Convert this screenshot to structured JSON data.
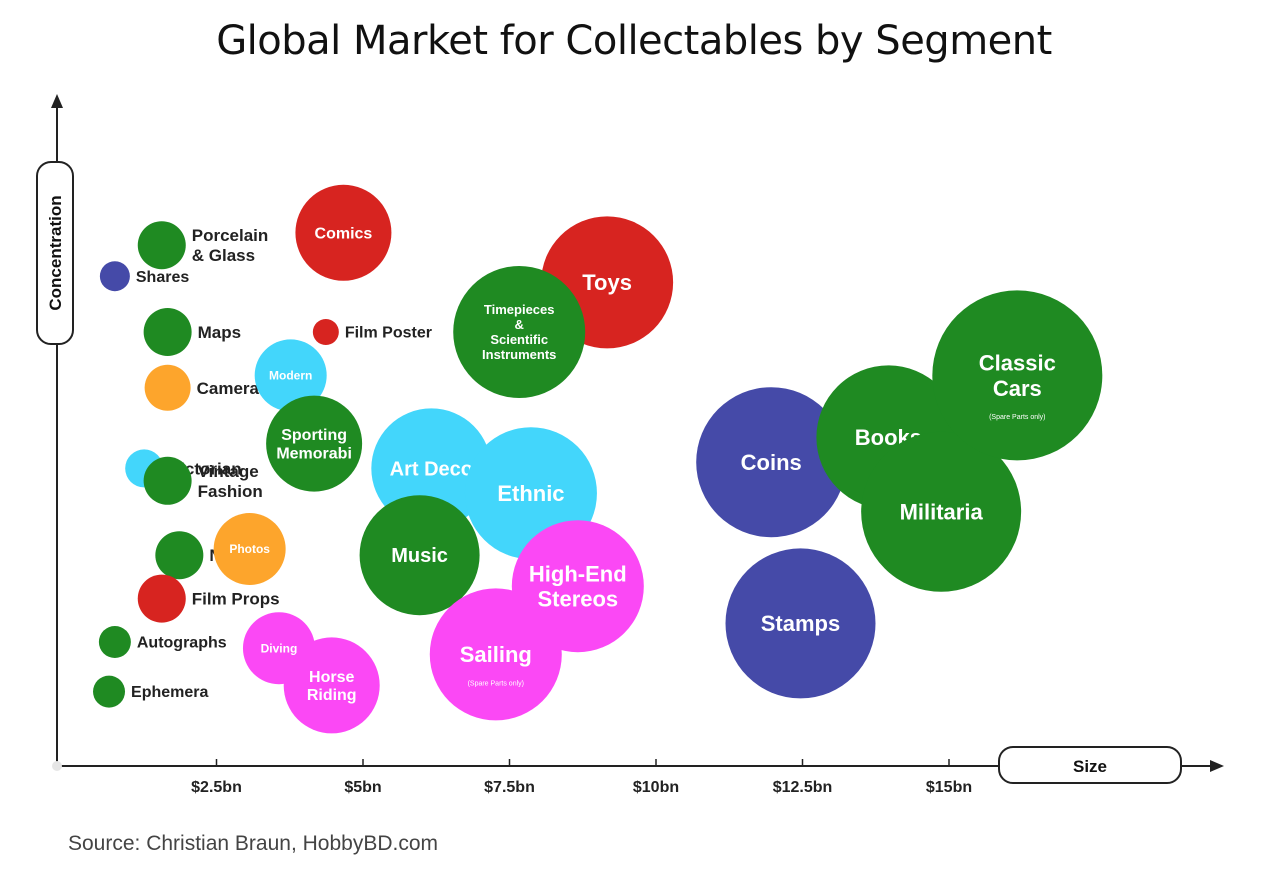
{
  "chart_data": {
    "type": "scatter",
    "title": "Global Market for Collectables by Segment",
    "xlabel": "Size",
    "ylabel": "Concentration",
    "x_ticks": [
      "$2.5bn",
      "$5bn",
      "$7.5bn",
      "$10bn",
      "$12.5bn",
      "$15bn"
    ],
    "source": "Source: Christian Braun, HobbyBD.com",
    "colors": {
      "green": "#1f8a22",
      "red": "#d72420",
      "blue": "#454aa8",
      "cyan": "#43d6fb",
      "orange": "#fda52c",
      "magenta": "#fb48f5"
    },
    "bubbles": [
      {
        "name": "Porcelain & Glass",
        "lines": [
          "Porcelain",
          "& Glass"
        ],
        "color": "green",
        "size": 1.6,
        "concentration": 0.84,
        "r": 24,
        "label_outside": true
      },
      {
        "name": "Shares",
        "lines": [
          "Shares"
        ],
        "color": "blue",
        "size": 0.8,
        "concentration": 0.79,
        "r": 15,
        "label_outside": true
      },
      {
        "name": "Maps",
        "lines": [
          "Maps"
        ],
        "color": "green",
        "size": 1.7,
        "concentration": 0.7,
        "r": 24,
        "label_outside": true
      },
      {
        "name": "Cameras",
        "lines": [
          "Cameras"
        ],
        "color": "orange",
        "size": 1.7,
        "concentration": 0.61,
        "r": 23,
        "label_outside": true
      },
      {
        "name": "Victorian",
        "lines": [
          "Victorian"
        ],
        "color": "cyan",
        "size": 1.3,
        "concentration": 0.48,
        "r": 19,
        "label_outside": true
      },
      {
        "name": "Vintage Fashion",
        "lines": [
          "Vintage",
          "Fashion"
        ],
        "color": "green",
        "size": 1.7,
        "concentration": 0.46,
        "r": 24,
        "label_outside": true
      },
      {
        "name": "Nature",
        "lines": [
          "Nature"
        ],
        "color": "green",
        "size": 1.9,
        "concentration": 0.34,
        "r": 24,
        "label_outside": true
      },
      {
        "name": "Photos",
        "lines": [
          "Photos"
        ],
        "color": "orange",
        "size": 3.1,
        "concentration": 0.35,
        "r": 36,
        "label_outside": false
      },
      {
        "name": "Film Props",
        "lines": [
          "Film Props"
        ],
        "color": "red",
        "size": 1.6,
        "concentration": 0.27,
        "r": 24,
        "label_outside": true
      },
      {
        "name": "Autographs",
        "lines": [
          "Autographs"
        ],
        "color": "green",
        "size": 0.8,
        "concentration": 0.2,
        "r": 16,
        "label_outside": true
      },
      {
        "name": "Ephemera",
        "lines": [
          "Ephemera"
        ],
        "color": "green",
        "size": 0.7,
        "concentration": 0.12,
        "r": 16,
        "label_outside": true
      },
      {
        "name": "Comics",
        "lines": [
          "Comics"
        ],
        "color": "red",
        "size": 4.7,
        "concentration": 0.86,
        "r": 48,
        "label_outside": false
      },
      {
        "name": "Film Poster",
        "lines": [
          "Film Poster"
        ],
        "color": "red",
        "size": 4.4,
        "concentration": 0.7,
        "r": 13,
        "label_outside": true
      },
      {
        "name": "Modern",
        "lines": [
          "Modern"
        ],
        "color": "cyan",
        "size": 3.8,
        "concentration": 0.63,
        "r": 36,
        "label_outside": false
      },
      {
        "name": "Sporting Memorabilia",
        "lines": [
          "Sporting",
          "Memorabi"
        ],
        "color": "green",
        "size": 4.2,
        "concentration": 0.52,
        "r": 48,
        "label_outside": false
      },
      {
        "name": "Art Deco",
        "lines": [
          "Art Deco"
        ],
        "color": "cyan",
        "size": 6.2,
        "concentration": 0.48,
        "r": 60,
        "label_outside": false
      },
      {
        "name": "Ethnic",
        "lines": [
          "Ethnic"
        ],
        "color": "cyan",
        "size": 7.9,
        "concentration": 0.44,
        "r": 66,
        "label_outside": false
      },
      {
        "name": "Music",
        "lines": [
          "Music"
        ],
        "color": "green",
        "size": 6.0,
        "concentration": 0.34,
        "r": 60,
        "label_outside": false
      },
      {
        "name": "Toys",
        "lines": [
          "Toys"
        ],
        "color": "red",
        "size": 9.2,
        "concentration": 0.78,
        "r": 66,
        "label_outside": false
      },
      {
        "name": "Timepieces & Scientific Instruments",
        "lines": [
          "Timepieces",
          "&",
          "Scientific",
          "Instruments"
        ],
        "color": "green",
        "size": 7.7,
        "concentration": 0.7,
        "r": 66,
        "label_outside": false
      },
      {
        "name": "High-End Stereos",
        "lines": [
          "High-End",
          "Stereos"
        ],
        "color": "magenta",
        "size": 8.7,
        "concentration": 0.29,
        "r": 66,
        "label_outside": false
      },
      {
        "name": "Sailing",
        "lines": [
          "Sailing"
        ],
        "color": "magenta",
        "size": 7.3,
        "concentration": 0.18,
        "r": 66,
        "label_outside": false,
        "note": "(Spare Parts only)"
      },
      {
        "name": "Diving",
        "lines": [
          "Diving"
        ],
        "color": "magenta",
        "size": 3.6,
        "concentration": 0.19,
        "r": 36,
        "label_outside": false
      },
      {
        "name": "Horse Riding",
        "lines": [
          "Horse",
          "Riding"
        ],
        "color": "magenta",
        "size": 4.5,
        "concentration": 0.13,
        "r": 48,
        "label_outside": false
      },
      {
        "name": "Coins",
        "lines": [
          "Coins"
        ],
        "color": "blue",
        "size": 12.0,
        "concentration": 0.49,
        "r": 75,
        "label_outside": false
      },
      {
        "name": "Stamps",
        "lines": [
          "Stamps"
        ],
        "color": "blue",
        "size": 12.5,
        "concentration": 0.23,
        "r": 75,
        "label_outside": false
      },
      {
        "name": "Books",
        "lines": [
          "Books"
        ],
        "color": "green",
        "size": 14.0,
        "concentration": 0.53,
        "r": 72,
        "label_outside": false
      },
      {
        "name": "Militaria",
        "lines": [
          "Militaria"
        ],
        "color": "green",
        "size": 14.9,
        "concentration": 0.41,
        "r": 80,
        "label_outside": false
      },
      {
        "name": "Classic Cars",
        "lines": [
          "Classic",
          "Cars"
        ],
        "color": "green",
        "size": 16.2,
        "concentration": 0.63,
        "r": 85,
        "label_outside": false,
        "note": "(Spare Parts only)"
      }
    ]
  }
}
